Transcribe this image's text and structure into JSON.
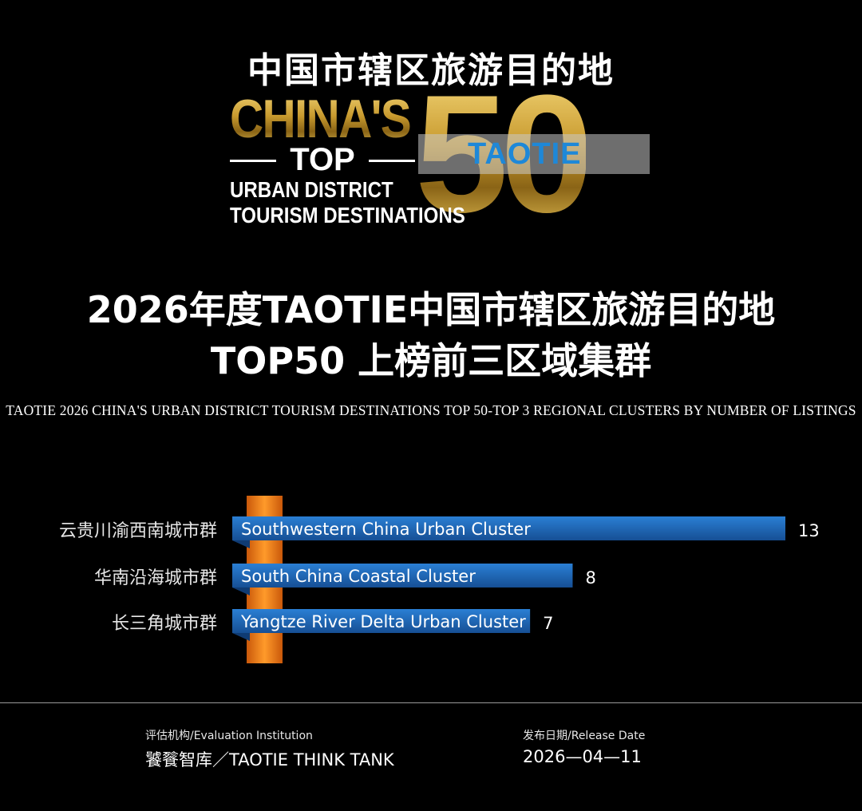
{
  "logo": {
    "cn_title": "中国市辖区旅游目的地",
    "line1": "CHINA'S",
    "line2": "TOP",
    "line3": "URBAN DISTRICT",
    "line4": "TOURISM DESTINATIONS",
    "number": "50",
    "brand": "TAOTIE"
  },
  "title_line1": "2026年度TAOTIE中国市辖区旅游目的地",
  "title_line2": "TOP50  上榜前三区域集群",
  "subtitle": "TAOTIE 2026 CHINA'S URBAN DISTRICT TOURISM DESTINATIONS TOP 50-TOP 3 REGIONAL CLUSTERS BY NUMBER OF LISTINGS",
  "chart_data": {
    "type": "bar",
    "orientation": "horizontal",
    "categories": [
      "云贵川渝西南城市群",
      "华南沿海城市群",
      "长三角城市群"
    ],
    "bar_labels": [
      "Southwestern China Urban Cluster",
      "South China Coastal Cluster",
      "Yangtze River Delta Urban Cluster"
    ],
    "values": [
      13,
      8,
      7
    ],
    "xlim": [
      0,
      13
    ],
    "grid": false,
    "bar_color": "#1d67b8",
    "accent_color": "#f07a12"
  },
  "footer": {
    "institution_label": "评估机构/Evaluation Institution",
    "institution_value": "饕餮智库／TAOTIE THINK TANK",
    "date_label": "发布日期/Release Date",
    "date_value": "2026—04—11"
  }
}
